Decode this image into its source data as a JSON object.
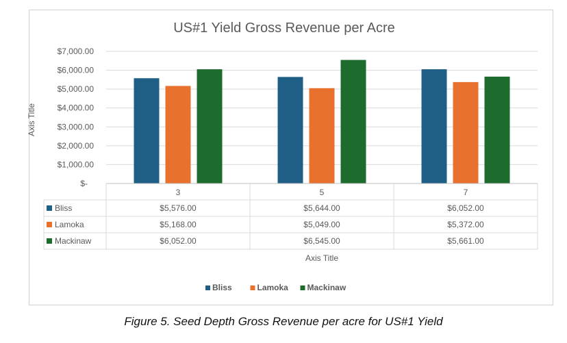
{
  "chart_data": {
    "type": "bar",
    "title": "US#1 Yield Gross Revenue per Acre",
    "xlabel": "Axis Title",
    "ylabel": "Axis Title",
    "categories": [
      "3",
      "5",
      "7"
    ],
    "ylim": [
      0,
      7000
    ],
    "yticks": [
      "$-",
      "$1,000.00",
      "$2,000.00",
      "$3,000.00",
      "$4,000.00",
      "$5,000.00",
      "$6,000.00",
      "$7,000.00"
    ],
    "grid": true,
    "legend": "bottom",
    "series": [
      {
        "name": "Bliss",
        "color": "#1f5f86",
        "values": [
          5576,
          5644,
          6052
        ],
        "labels": [
          "$5,576.00",
          "$5,644.00",
          "$6,052.00"
        ]
      },
      {
        "name": "Lamoka",
        "color": "#e8712e",
        "values": [
          5168,
          5049,
          5372
        ],
        "labels": [
          "$5,168.00",
          "$5,049.00",
          "$5,372.00"
        ]
      },
      {
        "name": "Mackinaw",
        "color": "#1e6b2e",
        "values": [
          6052,
          6545,
          5661
        ],
        "labels": [
          "$6,052.00",
          "$6,545.00",
          "$5,661.00"
        ]
      }
    ]
  },
  "caption": "Figure 5. Seed Depth Gross Revenue per acre for US#1 Yield"
}
